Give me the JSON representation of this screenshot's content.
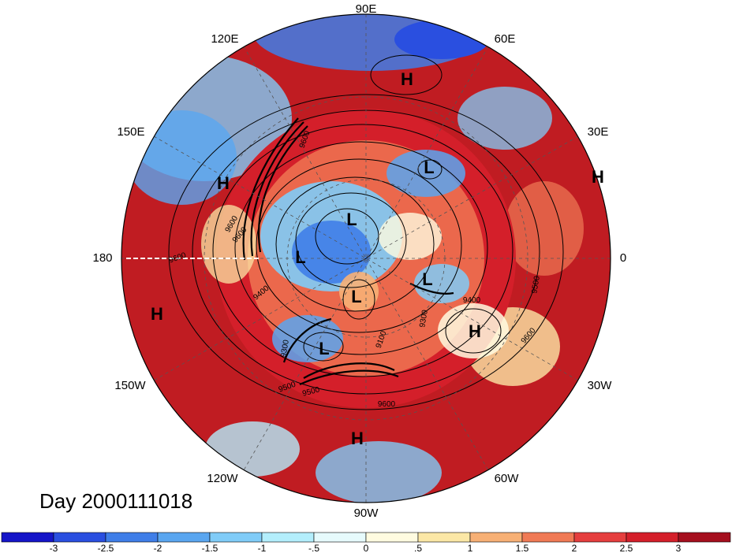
{
  "map": {
    "day_label": "Day 2000111018",
    "longitude_labels": [
      "90E",
      "60E",
      "30E",
      "0",
      "30W",
      "60W",
      "90W",
      "120W",
      "150W",
      "180",
      "150E",
      "120E"
    ],
    "contour_labels": [
      "9600",
      "9600",
      "9400",
      "9300",
      "9500",
      "9400",
      "9100",
      "9300",
      "9500",
      "9600",
      "9600",
      "9600",
      "9600",
      "9500"
    ],
    "pressure_centers": [
      {
        "type": "H"
      },
      {
        "type": "L"
      },
      {
        "type": "H"
      },
      {
        "type": "H"
      },
      {
        "type": "L"
      },
      {
        "type": "L"
      },
      {
        "type": "L"
      },
      {
        "type": "L"
      },
      {
        "type": "H"
      },
      {
        "type": "H"
      },
      {
        "type": "L"
      },
      {
        "type": "H"
      }
    ]
  },
  "colorbar": {
    "colors": [
      "#1515c8",
      "#2a4fe0",
      "#3f7ee8",
      "#5aa6f0",
      "#80ccf8",
      "#b3eefc",
      "#e6fafc",
      "#fffbe0",
      "#fbe7a6",
      "#f7b075",
      "#f07a55",
      "#e53e3e",
      "#d41f2a",
      "#a50f1e"
    ],
    "tick_labels": [
      "-3",
      "-2.5",
      "-2",
      "-1.5",
      "-1",
      "-.5",
      "0",
      ".5",
      "1",
      "1.5",
      "2",
      "2.5",
      "3"
    ]
  }
}
